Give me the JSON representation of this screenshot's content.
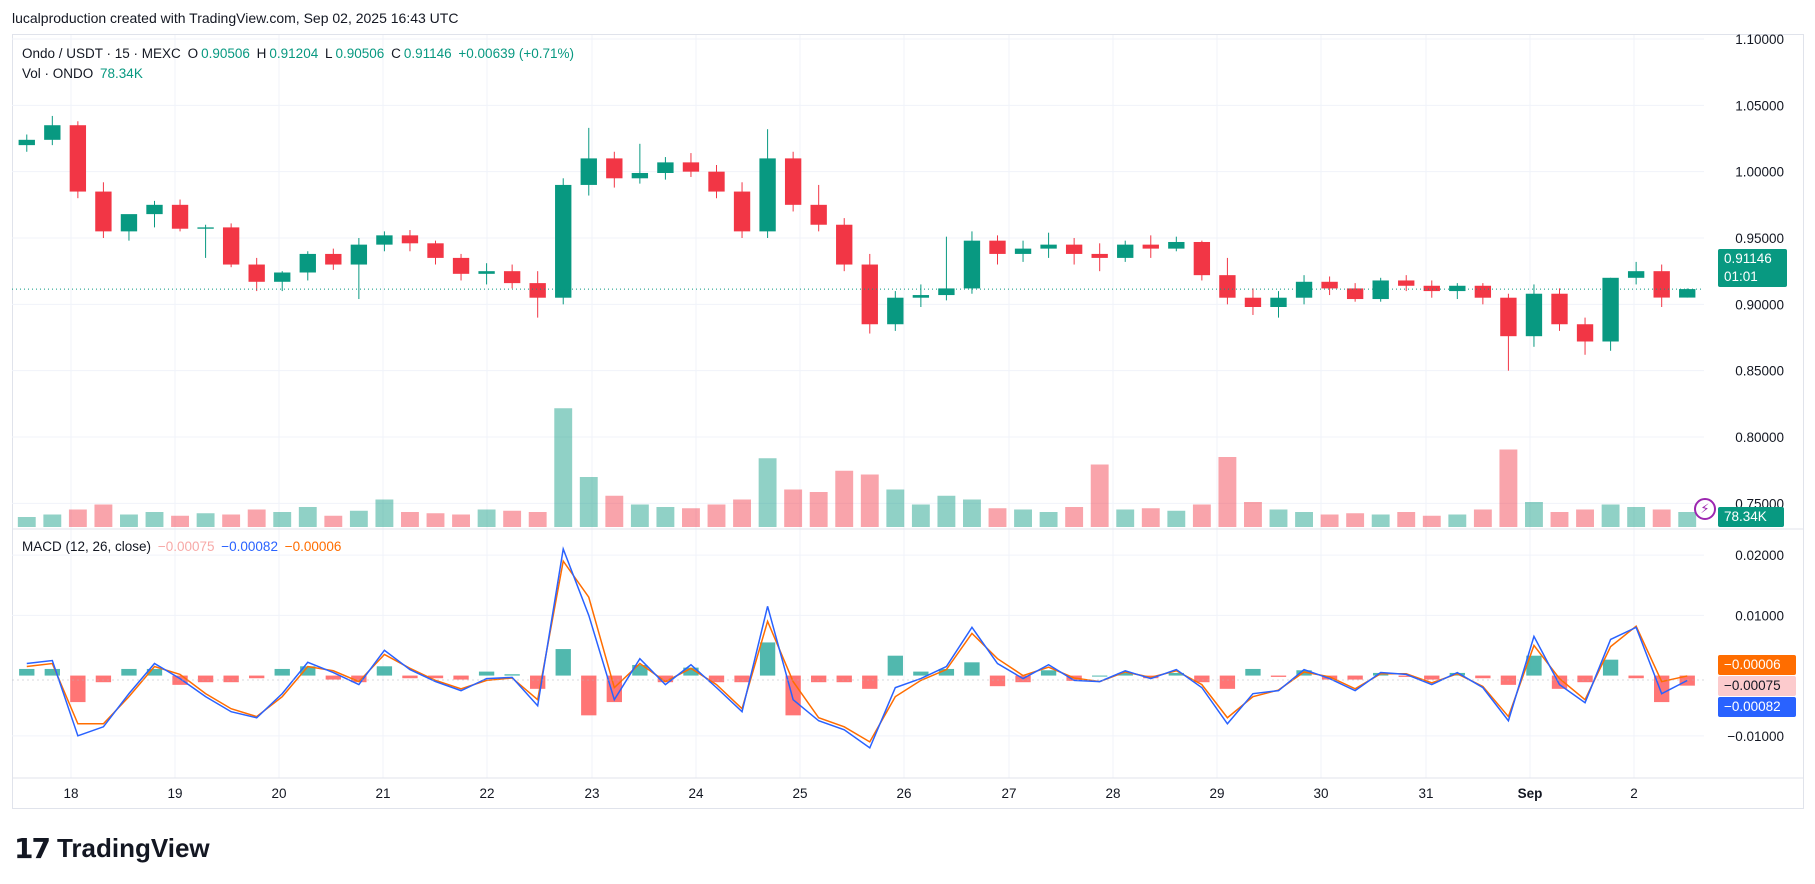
{
  "header": {
    "attribution": "lucalproduction created with TradingView.com, Sep 02, 2025 16:43 UTC"
  },
  "legend": {
    "symbol": "Ondo / USDT · 15 · MEXC",
    "o_label": "O",
    "o_value": "0.90506",
    "h_label": "H",
    "h_value": "0.91204",
    "l_label": "L",
    "l_value": "0.90506",
    "c_label": "C",
    "c_value": "0.91146",
    "change": "+0.00639 (+0.71%)",
    "vol_label": "Vol · ONDO",
    "vol_value": "78.34K",
    "macd_label": "MACD (12, 26, close)",
    "macd_hist": "−0.00075",
    "macd_line": "−0.00082",
    "macd_signal": "−0.00006"
  },
  "badges": {
    "price": "0.91146",
    "countdown": "01:01",
    "volume": "78.34K",
    "macd_signal": "−0.00006",
    "macd_hist": "−0.00075",
    "macd_line": "−0.00082"
  },
  "branding": {
    "logo_mark": "17",
    "logo_text": "TradingView"
  },
  "colors": {
    "up": "#089981",
    "down": "#f23645",
    "macd": "#2962ff",
    "signal": "#ff6d00",
    "grid": "#f0f3fa"
  },
  "chart_data": [
    {
      "type": "candlestick",
      "title": "Ondo / USDT · 15 · MEXC",
      "x_tick_labels": [
        "18",
        "19",
        "20",
        "21",
        "22",
        "23",
        "24",
        "25",
        "26",
        "27",
        "28",
        "29",
        "30",
        "31",
        "Sep",
        "2"
      ],
      "y_ticks": [
        "1.10000",
        "1.05000",
        "1.00000",
        "0.95000",
        "0.90000",
        "0.85000",
        "0.80000",
        "0.75000"
      ],
      "ylim": [
        0.745,
        1.103
      ],
      "last_price": 0.91146,
      "series": [
        {
          "name": "Ondo / USDT",
          "x": [
            "Aug 17 12:00",
            "Aug 17 18:00",
            "Aug 18 00:00",
            "Aug 18 06:00",
            "Aug 18 12:00",
            "Aug 18 18:00",
            "Aug 19 00:00",
            "Aug 19 06:00",
            "Aug 19 12:00",
            "Aug 19 18:00",
            "Aug 20 00:00",
            "Aug 20 06:00",
            "Aug 20 12:00",
            "Aug 20 18:00",
            "Aug 21 00:00",
            "Aug 21 06:00",
            "Aug 21 12:00",
            "Aug 21 18:00",
            "Aug 22 00:00",
            "Aug 22 06:00",
            "Aug 22 12:00",
            "Aug 22 18:00",
            "Aug 23 00:00",
            "Aug 23 06:00",
            "Aug 23 12:00",
            "Aug 23 18:00",
            "Aug 24 00:00",
            "Aug 24 06:00",
            "Aug 24 12:00",
            "Aug 24 18:00",
            "Aug 25 00:00",
            "Aug 25 06:00",
            "Aug 25 12:00",
            "Aug 25 18:00",
            "Aug 26 00:00",
            "Aug 26 06:00",
            "Aug 26 12:00",
            "Aug 26 18:00",
            "Aug 27 00:00",
            "Aug 27 06:00",
            "Aug 27 12:00",
            "Aug 27 18:00",
            "Aug 28 00:00",
            "Aug 28 06:00",
            "Aug 28 12:00",
            "Aug 28 18:00",
            "Aug 29 00:00",
            "Aug 29 06:00",
            "Aug 29 12:00",
            "Aug 29 18:00",
            "Aug 30 00:00",
            "Aug 30 06:00",
            "Aug 30 12:00",
            "Aug 30 18:00",
            "Aug 31 00:00",
            "Aug 31 06:00",
            "Aug 31 12:00",
            "Aug 31 18:00",
            "Sep 1 00:00",
            "Sep 1 06:00",
            "Sep 1 12:00",
            "Sep 1 18:00",
            "Sep 2 00:00",
            "Sep 2 06:00",
            "Sep 2 12:00",
            "Sep 2 16:00"
          ],
          "open": [
            1.02,
            1.024,
            1.035,
            0.985,
            0.955,
            0.968,
            0.975,
            0.957,
            0.958,
            0.93,
            0.917,
            0.924,
            0.938,
            0.93,
            0.945,
            0.952,
            0.946,
            0.935,
            0.923,
            0.925,
            0.916,
            0.905,
            0.99,
            1.01,
            0.995,
            0.999,
            1.007,
            1.0,
            0.985,
            0.955,
            1.01,
            0.975,
            0.96,
            0.93,
            0.885,
            0.905,
            0.907,
            0.912,
            0.948,
            0.938,
            0.942,
            0.945,
            0.938,
            0.935,
            0.945,
            0.942,
            0.947,
            0.922,
            0.905,
            0.898,
            0.905,
            0.917,
            0.912,
            0.904,
            0.918,
            0.914,
            0.91,
            0.914,
            0.905,
            0.876,
            0.908,
            0.885,
            0.872,
            0.92,
            0.925,
            0.9051
          ],
          "high": [
            1.028,
            1.042,
            1.038,
            0.992,
            0.965,
            0.978,
            0.979,
            0.96,
            0.961,
            0.935,
            0.925,
            0.94,
            0.942,
            0.95,
            0.955,
            0.956,
            0.948,
            0.938,
            0.931,
            0.93,
            0.925,
            0.995,
            1.033,
            1.015,
            1.021,
            1.011,
            1.014,
            1.005,
            0.992,
            1.032,
            1.015,
            0.99,
            0.965,
            0.938,
            0.91,
            0.915,
            0.951,
            0.955,
            0.952,
            0.948,
            0.954,
            0.95,
            0.946,
            0.948,
            0.952,
            0.951,
            0.948,
            0.935,
            0.912,
            0.91,
            0.922,
            0.921,
            0.916,
            0.92,
            0.922,
            0.918,
            0.916,
            0.916,
            0.908,
            0.915,
            0.912,
            0.89,
            0.92,
            0.932,
            0.93,
            0.912
          ],
          "low": [
            1.015,
            1.02,
            0.98,
            0.95,
            0.948,
            0.958,
            0.955,
            0.935,
            0.928,
            0.91,
            0.91,
            0.918,
            0.926,
            0.904,
            0.94,
            0.94,
            0.93,
            0.918,
            0.915,
            0.912,
            0.89,
            0.9,
            0.982,
            0.988,
            0.991,
            0.994,
            0.996,
            0.98,
            0.95,
            0.95,
            0.97,
            0.955,
            0.925,
            0.878,
            0.88,
            0.898,
            0.903,
            0.908,
            0.93,
            0.932,
            0.935,
            0.93,
            0.925,
            0.932,
            0.935,
            0.94,
            0.918,
            0.9,
            0.892,
            0.89,
            0.9,
            0.907,
            0.902,
            0.902,
            0.91,
            0.905,
            0.904,
            0.9,
            0.85,
            0.868,
            0.88,
            0.862,
            0.865,
            0.915,
            0.898,
            0.9051
          ],
          "close": [
            1.024,
            1.035,
            0.985,
            0.955,
            0.968,
            0.975,
            0.957,
            0.958,
            0.93,
            0.917,
            0.924,
            0.938,
            0.93,
            0.945,
            0.952,
            0.946,
            0.935,
            0.923,
            0.925,
            0.916,
            0.905,
            0.99,
            1.01,
            0.995,
            0.999,
            1.007,
            1.0,
            0.985,
            0.955,
            1.01,
            0.975,
            0.96,
            0.93,
            0.885,
            0.905,
            0.907,
            0.912,
            0.948,
            0.938,
            0.942,
            0.945,
            0.938,
            0.935,
            0.945,
            0.942,
            0.947,
            0.922,
            0.905,
            0.898,
            0.905,
            0.917,
            0.912,
            0.904,
            0.918,
            0.914,
            0.91,
            0.914,
            0.905,
            0.876,
            0.908,
            0.885,
            0.872,
            0.92,
            0.925,
            0.9051,
            0.9115
          ]
        }
      ]
    },
    {
      "type": "bar",
      "title": "Vol · ONDO",
      "last_value": "78.34K",
      "values_rel": [
        0.08,
        0.1,
        0.14,
        0.18,
        0.1,
        0.12,
        0.09,
        0.11,
        0.1,
        0.14,
        0.12,
        0.16,
        0.09,
        0.13,
        0.22,
        0.12,
        0.11,
        0.1,
        0.14,
        0.13,
        0.12,
        0.95,
        0.4,
        0.25,
        0.18,
        0.16,
        0.15,
        0.18,
        0.22,
        0.55,
        0.3,
        0.28,
        0.45,
        0.42,
        0.3,
        0.18,
        0.25,
        0.22,
        0.15,
        0.14,
        0.12,
        0.16,
        0.5,
        0.14,
        0.15,
        0.13,
        0.18,
        0.56,
        0.2,
        0.14,
        0.12,
        0.1,
        0.11,
        0.1,
        0.12,
        0.09,
        0.1,
        0.14,
        0.62,
        0.2,
        0.12,
        0.14,
        0.18,
        0.16,
        0.14,
        0.12
      ]
    },
    {
      "type": "line",
      "title": "MACD (12, 26, close)",
      "y_ticks": [
        "0.02000",
        "0.01000",
        "-0.01000"
      ],
      "ylim": [
        -0.0165,
        0.0225
      ],
      "series": [
        {
          "name": "MACD",
          "values": [
            0.002,
            0.0025,
            -0.01,
            -0.0085,
            -0.003,
            0.002,
            -0.0005,
            -0.0035,
            -0.006,
            -0.007,
            -0.003,
            0.0022,
            0.0005,
            -0.0015,
            0.0042,
            0.001,
            -0.001,
            -0.0025,
            -0.0005,
            -0.0003,
            -0.005,
            0.021,
            0.01,
            -0.004,
            0.0028,
            -0.0015,
            0.0018,
            -0.002,
            -0.006,
            0.0115,
            -0.004,
            -0.0075,
            -0.009,
            -0.012,
            -0.002,
            -0.0005,
            0.0015,
            0.008,
            0.002,
            -0.0005,
            0.0018,
            -0.0008,
            -0.001,
            0.0008,
            -0.0005,
            0.001,
            -0.002,
            -0.008,
            -0.003,
            -0.0025,
            0.001,
            -0.0005,
            -0.0025,
            0.0005,
            0.0002,
            -0.0015,
            0.0005,
            -0.002,
            -0.0075,
            0.0065,
            -0.0015,
            -0.0045,
            0.006,
            0.008,
            -0.003,
            -0.00082
          ]
        },
        {
          "name": "Signal",
          "values": [
            0.0015,
            0.002,
            -0.008,
            -0.008,
            -0.0035,
            0.0015,
            0.0002,
            -0.003,
            -0.0055,
            -0.0068,
            -0.0035,
            0.0015,
            0.0008,
            -0.001,
            0.0035,
            0.0012,
            -0.0008,
            -0.0022,
            -0.0008,
            -0.0004,
            -0.004,
            0.019,
            0.013,
            -0.002,
            0.002,
            -0.001,
            0.0012,
            -0.0015,
            -0.0055,
            0.009,
            -0.001,
            -0.007,
            -0.0085,
            -0.011,
            -0.0035,
            -0.0008,
            0.001,
            0.007,
            0.0028,
            0.0,
            0.0014,
            -0.0004,
            -0.001,
            0.0006,
            -0.0003,
            0.0008,
            -0.0015,
            -0.007,
            -0.0035,
            -0.0024,
            0.0006,
            -0.0002,
            -0.0022,
            0.0003,
            0.0003,
            -0.0012,
            0.0003,
            -0.0018,
            -0.0068,
            0.005,
            -0.0005,
            -0.004,
            0.0048,
            0.0082,
            -0.001,
            -6e-05
          ]
        }
      ]
    }
  ]
}
